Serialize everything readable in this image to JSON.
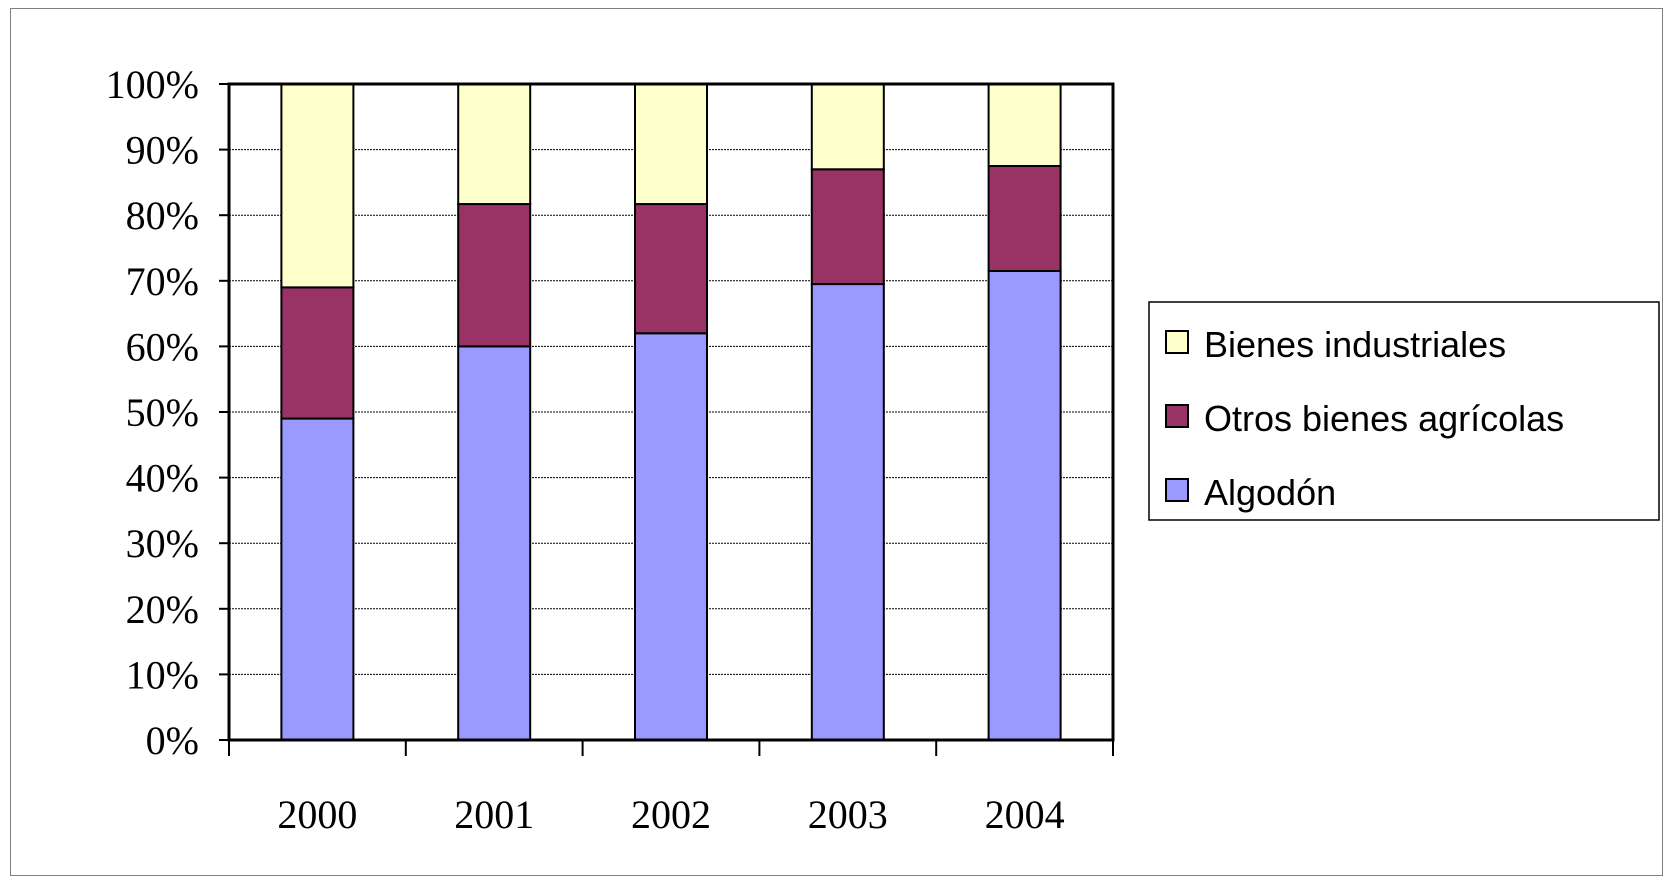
{
  "chart_data": {
    "type": "bar",
    "stacked": true,
    "percent_stacked": true,
    "categories": [
      "2000",
      "2001",
      "2002",
      "2003",
      "2004"
    ],
    "series": [
      {
        "name": "Algodón",
        "values": [
          49,
          60,
          62,
          69.5,
          71.5
        ],
        "color": "#9999ff"
      },
      {
        "name": "Otros bienes agrícolas",
        "values": [
          20,
          21.7,
          19.7,
          17.5,
          16
        ],
        "color": "#993366"
      },
      {
        "name": "Bienes industriales",
        "values": [
          31,
          18.3,
          18.3,
          13,
          12.5
        ],
        "color": "#ffffcc"
      }
    ],
    "y_ticks": [
      "0%",
      "10%",
      "20%",
      "30%",
      "40%",
      "50%",
      "60%",
      "70%",
      "80%",
      "90%",
      "100%"
    ],
    "ylim": [
      0,
      100
    ],
    "grid": true,
    "legend_position": "right",
    "legend_order": [
      "Bienes industriales",
      "Otros bienes agrícolas",
      "Algodón"
    ]
  }
}
